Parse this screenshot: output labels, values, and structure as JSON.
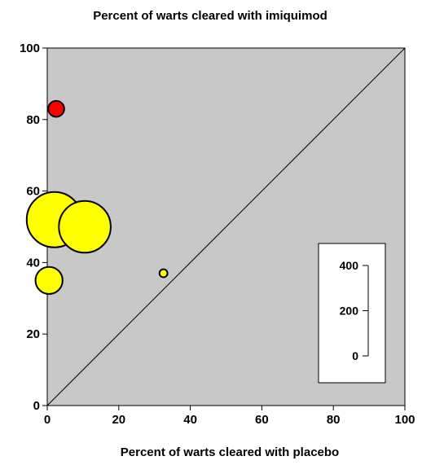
{
  "chart_data": {
    "type": "scatter",
    "title": "Percent of warts cleared with imiquimod",
    "xlabel": "Percent of warts cleared with placebo",
    "ylabel": "",
    "xlim": [
      0,
      100
    ],
    "ylim": [
      0,
      100
    ],
    "xticks": [
      0,
      20,
      40,
      60,
      80,
      100
    ],
    "yticks": [
      0,
      20,
      40,
      60,
      80,
      100
    ],
    "xtick_labels": [
      "0",
      "20",
      "40",
      "60",
      "80",
      "100"
    ],
    "ytick_labels": [
      "0",
      "20",
      "40",
      "60",
      "80",
      "100"
    ],
    "grid": false,
    "plot_background": "#c8c8c8",
    "reference_line": "y = x",
    "points": [
      {
        "x": 2.5,
        "y": 83,
        "size": 40,
        "color": "#ff0000"
      },
      {
        "x": 2,
        "y": 52,
        "size": 480,
        "color": "#ffff00"
      },
      {
        "x": 10.5,
        "y": 50,
        "size": 420,
        "color": "#ffff00"
      },
      {
        "x": 0.5,
        "y": 35,
        "size": 115,
        "color": "#ffff00"
      },
      {
        "x": 32.5,
        "y": 37,
        "size": 10,
        "color": "#ffff00"
      }
    ],
    "size_legend": {
      "placement": "bottom-right",
      "values": [
        400,
        200,
        0
      ],
      "labels": [
        "400",
        "200",
        "0"
      ]
    }
  }
}
